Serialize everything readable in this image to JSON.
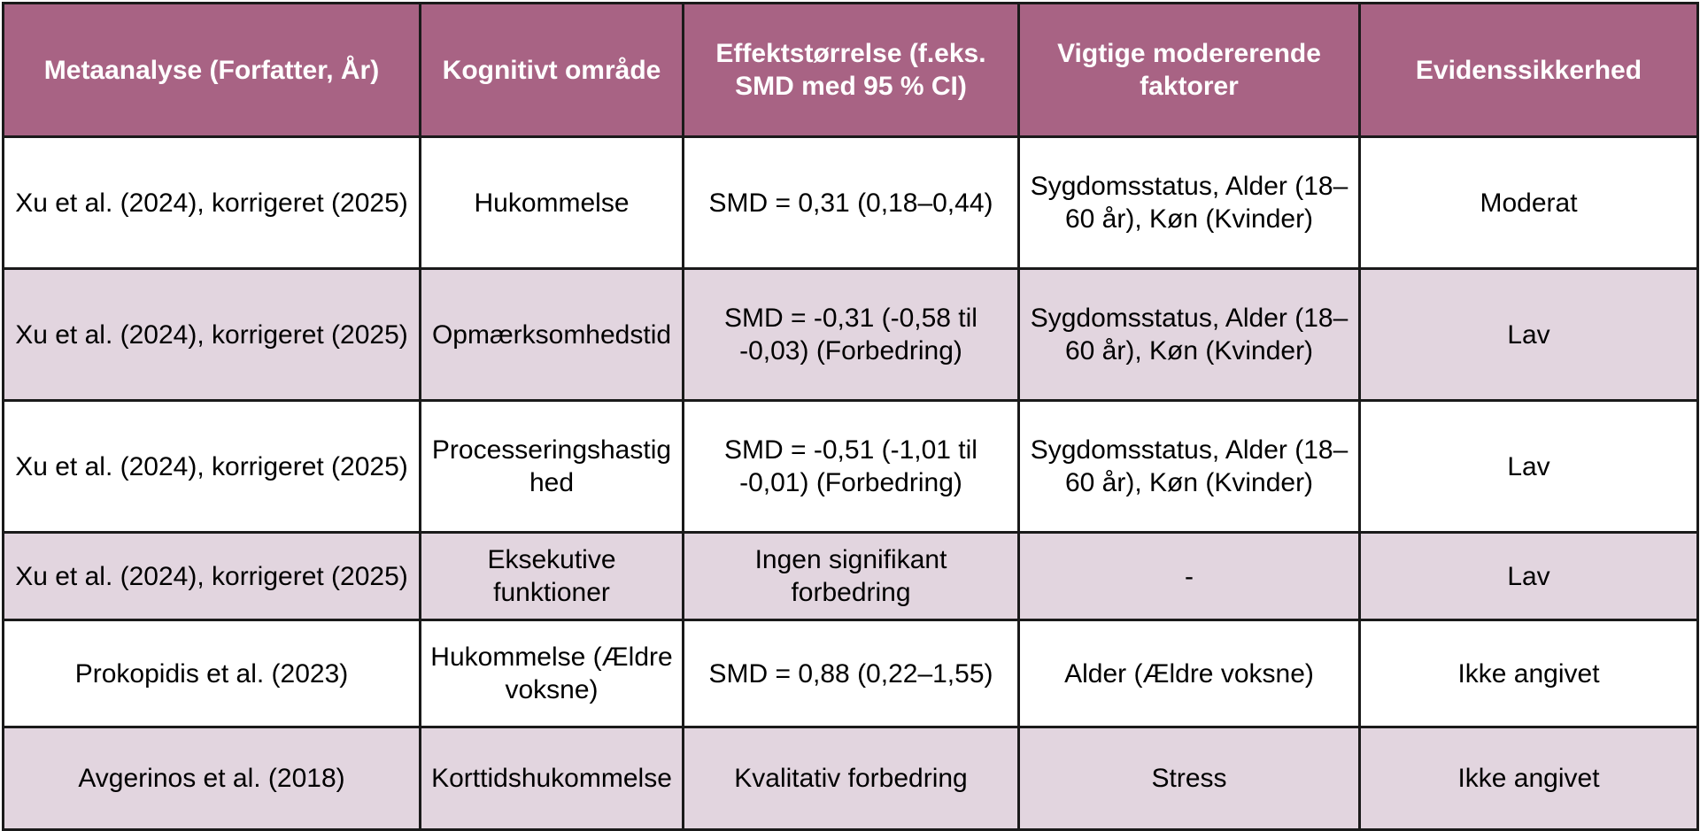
{
  "colors": {
    "header_bg": "#a86384",
    "header_text": "#ffffff",
    "alt_row_bg": "#e2d5df",
    "border": "#1a1a1a"
  },
  "table": {
    "headers": [
      "Metaanalyse (Forfatter, År)",
      "Kognitivt område",
      "Effektstørrelse (f.eks. SMD med 95 % CI)",
      "Vigtige modererende faktorer",
      "Evidenssikkerhed"
    ],
    "rows": [
      [
        "Xu et al. (2024), korrigeret (2025)",
        "Hukommelse",
        "SMD = 0,31 (0,18–0,44)",
        "Sygdomsstatus, Alder (18–60 år), Køn (Kvinder)",
        "Moderat"
      ],
      [
        "Xu et al. (2024), korrigeret (2025)",
        "Opmærksomhedstid",
        "SMD = -0,31 (-0,58 til -0,03) (Forbedring)",
        "Sygdomsstatus, Alder (18–60 år), Køn (Kvinder)",
        "Lav"
      ],
      [
        "Xu et al. (2024), korrigeret (2025)",
        "Processeringshastighed",
        "SMD = -0,51 (-1,01 til -0,01) (Forbedring)",
        "Sygdomsstatus, Alder (18–60 år), Køn (Kvinder)",
        "Lav"
      ],
      [
        "Xu et al. (2024), korrigeret (2025)",
        "Eksekutive funktioner",
        "Ingen signifikant forbedring",
        "-",
        "Lav"
      ],
      [
        "Prokopidis et al. (2023)",
        "Hukommelse (Ældre voksne)",
        "SMD = 0,88 (0,22–1,55)",
        "Alder (Ældre voksne)",
        "Ikke angivet"
      ],
      [
        "Avgerinos et al. (2018)",
        "Korttidshukommelse",
        "Kvalitativ forbedring",
        "Stress",
        "Ikke angivet"
      ]
    ]
  }
}
